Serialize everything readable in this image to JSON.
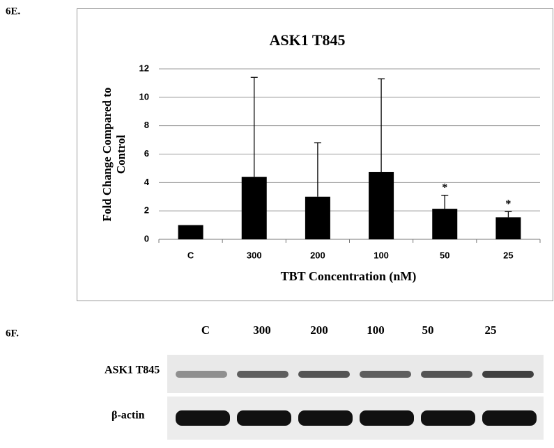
{
  "panel_labels": [
    "6E.",
    "6F."
  ],
  "chart_data": {
    "type": "bar",
    "title": "ASK1 T845",
    "categories": [
      "C",
      "300",
      "200",
      "100",
      "50",
      "25"
    ],
    "values": [
      1.0,
      4.4,
      3.0,
      4.75,
      2.15,
      1.55
    ],
    "errors": [
      null,
      7.0,
      3.8,
      6.55,
      0.95,
      0.4
    ],
    "annotations": [
      null,
      null,
      null,
      null,
      "*",
      "*"
    ],
    "color": "#000000",
    "ylim": [
      0,
      12
    ],
    "yticks": [
      0,
      2,
      4,
      6,
      8,
      10,
      12
    ],
    "grid": true,
    "x_label": "TBT Concentration (nM)",
    "y_label": [
      "Fold Change Compared to",
      "Control"
    ]
  },
  "blot": {
    "lanes": [
      "C",
      "300",
      "200",
      "100",
      "50",
      "25"
    ],
    "rows": [
      "ASK1 T845",
      "β-actin"
    ]
  }
}
